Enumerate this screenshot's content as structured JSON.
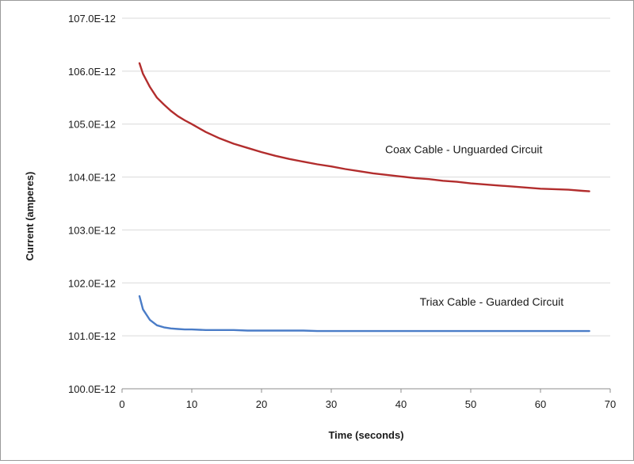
{
  "chart_data": {
    "type": "line",
    "title": "",
    "xlabel": "Time (seconds)",
    "ylabel": "Current (amperes)",
    "xlim": [
      0,
      70
    ],
    "ylim": [
      100.0,
      107.0
    ],
    "y_unit_scale": "E-12",
    "grid": "horizontal",
    "x_ticks": [
      "0",
      "10",
      "20",
      "30",
      "40",
      "50",
      "60",
      "70"
    ],
    "y_ticks": [
      "100.0E-12",
      "101.0E-12",
      "102.0E-12",
      "103.0E-12",
      "104.0E-12",
      "105.0E-12",
      "106.0E-12",
      "107.0E-12"
    ],
    "series": [
      {
        "color": "#b22d2d",
        "x": [
          2.5,
          3,
          4,
          5,
          6,
          7,
          8,
          9,
          10,
          12,
          14,
          16,
          18,
          20,
          22,
          24,
          26,
          28,
          30,
          32,
          34,
          36,
          38,
          40,
          42,
          44,
          46,
          48,
          50,
          52,
          54,
          56,
          58,
          60,
          62,
          64,
          66,
          67
        ],
        "values": [
          106.15,
          105.95,
          105.7,
          105.5,
          105.37,
          105.25,
          105.15,
          105.07,
          105.0,
          104.85,
          104.73,
          104.63,
          104.55,
          104.47,
          104.4,
          104.34,
          104.29,
          104.24,
          104.2,
          104.15,
          104.11,
          104.07,
          104.04,
          104.01,
          103.98,
          103.96,
          103.93,
          103.91,
          103.88,
          103.86,
          103.84,
          103.82,
          103.8,
          103.78,
          103.77,
          103.76,
          103.74,
          103.73
        ]
      },
      {
        "color": "#4a7cc7",
        "x": [
          2.5,
          3,
          4,
          5,
          6,
          7,
          8,
          9,
          10,
          12,
          14,
          16,
          18,
          20,
          22,
          24,
          26,
          28,
          30,
          32,
          34,
          36,
          38,
          40,
          42,
          44,
          46,
          48,
          50,
          52,
          54,
          56,
          58,
          60,
          62,
          64,
          66,
          67
        ],
        "values": [
          101.75,
          101.5,
          101.3,
          101.2,
          101.16,
          101.14,
          101.13,
          101.12,
          101.12,
          101.11,
          101.11,
          101.11,
          101.1,
          101.1,
          101.1,
          101.1,
          101.1,
          101.09,
          101.09,
          101.09,
          101.09,
          101.09,
          101.09,
          101.09,
          101.09,
          101.09,
          101.09,
          101.09,
          101.09,
          101.09,
          101.09,
          101.09,
          101.09,
          101.09,
          101.09,
          101.09,
          101.09,
          101.09
        ]
      }
    ],
    "annotations": [
      {
        "text": "Coax Cable - Unguarded Circuit",
        "x": 49,
        "y": 104.45
      },
      {
        "text": "Triax Cable - Guarded Circuit",
        "x": 53,
        "y": 101.57
      }
    ]
  }
}
